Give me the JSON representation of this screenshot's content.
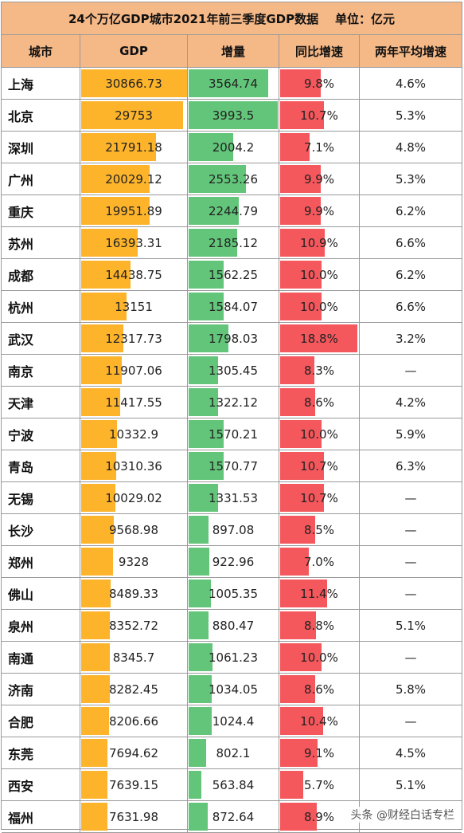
{
  "title": "24个万亿GDP城市2021年前三季度GDP数据    单位：亿元",
  "headers": [
    "城市",
    "GDP",
    "增量",
    "同比增速",
    "两年平均增速"
  ],
  "watermark": "头条 @财经白话专栏",
  "colors": {
    "header_bg": "#f5b887",
    "gdp_bar": "#fdb42b",
    "increment_bar": "#63c57a",
    "growth_bar": "#f4575c"
  },
  "chart_data": {
    "type": "table",
    "title": "24个万亿GDP城市2021年前三季度GDP数据    单位：亿元",
    "columns": [
      "城市",
      "GDP",
      "增量",
      "同比增速",
      "两年平均增速"
    ],
    "rows": [
      {
        "city": "上海",
        "gdp": "30866.73",
        "increment": "3564.74",
        "growth": "9.8%",
        "avg_growth": "4.6%"
      },
      {
        "city": "北京",
        "gdp": "29753",
        "increment": "3993.5",
        "growth": "10.7%",
        "avg_growth": "5.3%"
      },
      {
        "city": "深圳",
        "gdp": "21791.18",
        "increment": "2004.2",
        "growth": "7.1%",
        "avg_growth": "4.8%"
      },
      {
        "city": "广州",
        "gdp": "20029.12",
        "increment": "2553.26",
        "growth": "9.9%",
        "avg_growth": "5.3%"
      },
      {
        "city": "重庆",
        "gdp": "19951.89",
        "increment": "2244.79",
        "growth": "9.9%",
        "avg_growth": "6.2%"
      },
      {
        "city": "苏州",
        "gdp": "16393.31",
        "increment": "2185.12",
        "growth": "10.9%",
        "avg_growth": "6.6%"
      },
      {
        "city": "成都",
        "gdp": "14438.75",
        "increment": "1562.25",
        "growth": "10.0%",
        "avg_growth": "6.2%"
      },
      {
        "city": "杭州",
        "gdp": "13151",
        "increment": "1584.07",
        "growth": "10.0%",
        "avg_growth": "6.6%"
      },
      {
        "city": "武汉",
        "gdp": "12317.73",
        "increment": "1798.03",
        "growth": "18.8%",
        "avg_growth": "3.2%"
      },
      {
        "city": "南京",
        "gdp": "11907.06",
        "increment": "1305.45",
        "growth": "8.3%",
        "avg_growth": "—"
      },
      {
        "city": "天津",
        "gdp": "11417.55",
        "increment": "1322.12",
        "growth": "8.6%",
        "avg_growth": "4.2%"
      },
      {
        "city": "宁波",
        "gdp": "10332.9",
        "increment": "1570.21",
        "growth": "10.0%",
        "avg_growth": "5.9%"
      },
      {
        "city": "青岛",
        "gdp": "10310.36",
        "increment": "1570.77",
        "growth": "10.7%",
        "avg_growth": "6.3%"
      },
      {
        "city": "无锡",
        "gdp": "10029.02",
        "increment": "1331.53",
        "growth": "10.7%",
        "avg_growth": "—"
      },
      {
        "city": "长沙",
        "gdp": "9568.98",
        "increment": "897.08",
        "growth": "8.5%",
        "avg_growth": "—"
      },
      {
        "city": "郑州",
        "gdp": "9328",
        "increment": "922.96",
        "growth": "7.0%",
        "avg_growth": "—"
      },
      {
        "city": "佛山",
        "gdp": "8489.33",
        "increment": "1005.35",
        "growth": "11.4%",
        "avg_growth": "—"
      },
      {
        "city": "泉州",
        "gdp": "8352.72",
        "increment": "880.47",
        "growth": "8.8%",
        "avg_growth": "5.1%"
      },
      {
        "city": "南通",
        "gdp": "8345.7",
        "increment": "1061.23",
        "growth": "10.0%",
        "avg_growth": "—"
      },
      {
        "city": "济南",
        "gdp": "8282.45",
        "increment": "1034.05",
        "growth": "8.6%",
        "avg_growth": "5.8%"
      },
      {
        "city": "合肥",
        "gdp": "8206.66",
        "increment": "1024.4",
        "growth": "10.4%",
        "avg_growth": "—"
      },
      {
        "city": "东莞",
        "gdp": "7694.62",
        "increment": "802.1",
        "growth": "9.1%",
        "avg_growth": "4.5%"
      },
      {
        "city": "西安",
        "gdp": "7639.15",
        "increment": "563.84",
        "growth": "5.7%",
        "avg_growth": "5.1%"
      },
      {
        "city": "福州",
        "gdp": "7631.98",
        "increment": "872.64",
        "growth": "8.9%",
        "avg_growth": "—"
      }
    ]
  }
}
